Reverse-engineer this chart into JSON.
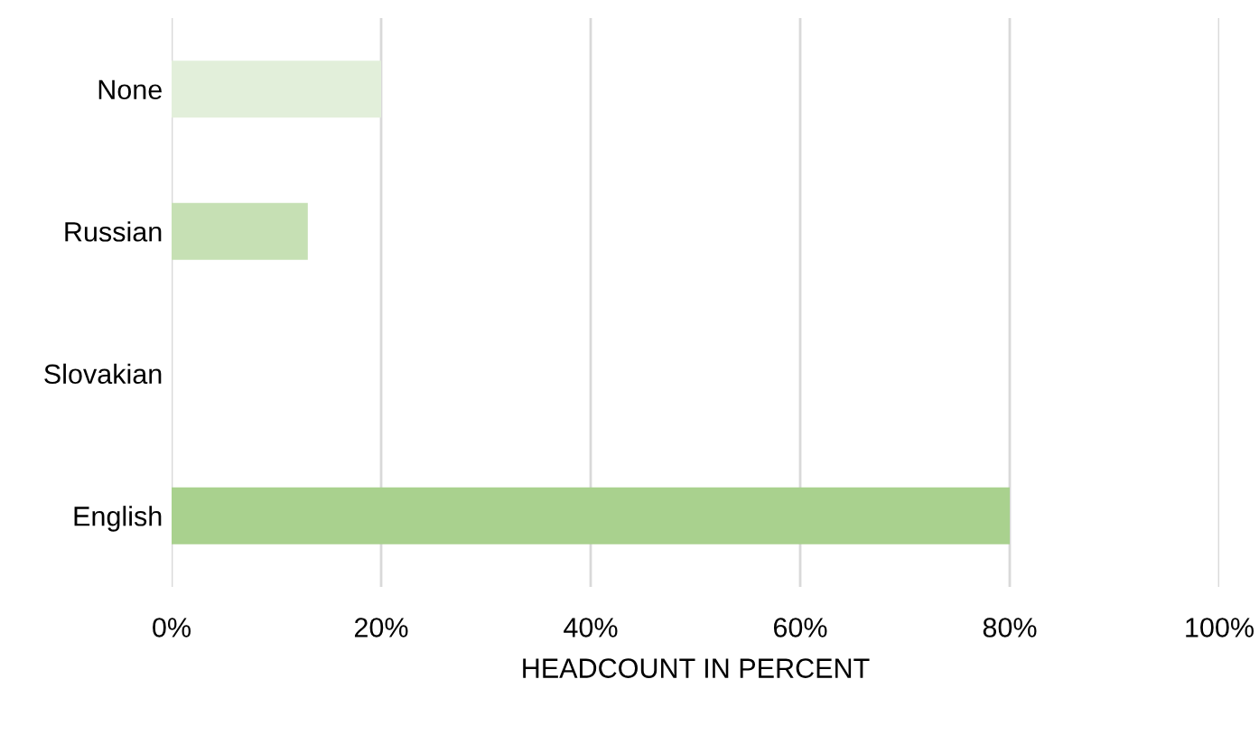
{
  "chart_data": {
    "type": "bar",
    "orientation": "horizontal",
    "xlabel": "HEADCOUNT IN PERCENT",
    "categories": [
      "None",
      "Russian",
      "Slovakian",
      "English"
    ],
    "values": [
      20,
      13,
      0,
      80
    ],
    "colors": [
      "#e2efda",
      "#c6e0b4",
      "#c6e0b4",
      "#a9d18e"
    ],
    "xlim": [
      0,
      100
    ],
    "xticks": [
      {
        "value": 0,
        "label": "0%"
      },
      {
        "value": 20,
        "label": "20%"
      },
      {
        "value": 40,
        "label": "40%"
      },
      {
        "value": 60,
        "label": "60%"
      },
      {
        "value": 80,
        "label": "80%"
      },
      {
        "value": 100,
        "label": "100%"
      }
    ],
    "grid": "x"
  }
}
